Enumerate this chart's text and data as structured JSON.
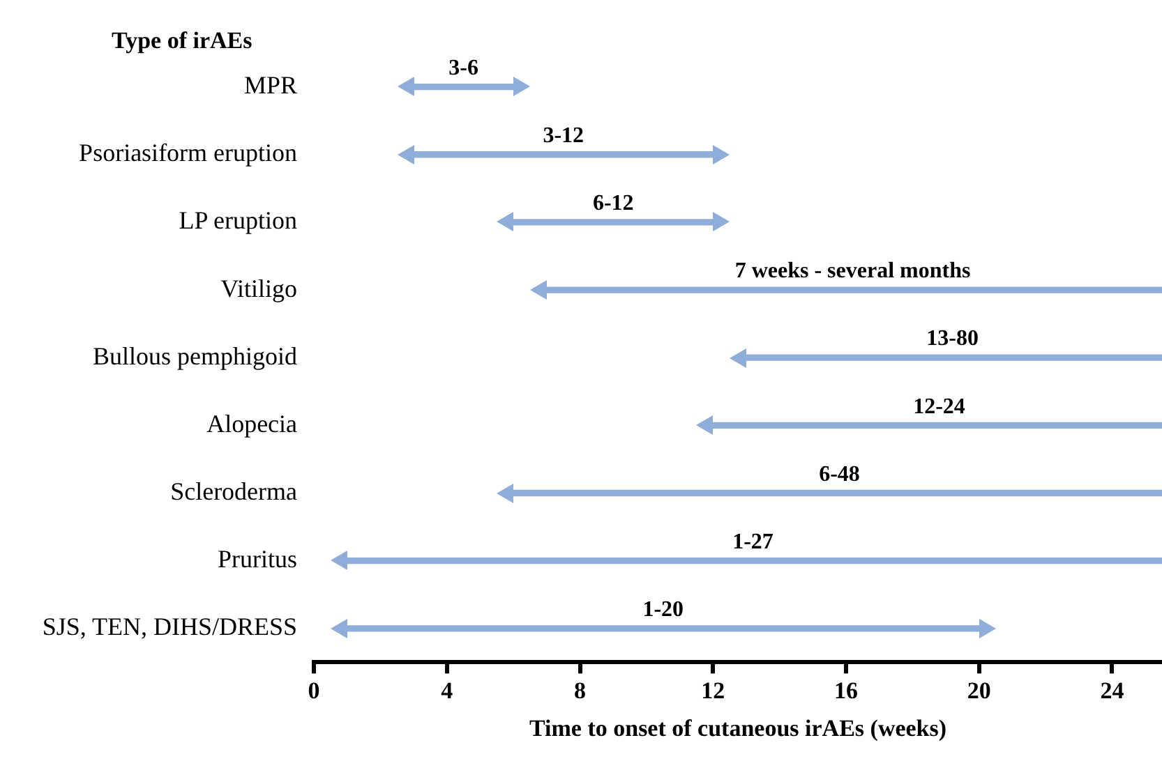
{
  "chart_data": {
    "type": "bar",
    "orientation": "horizontal",
    "ylabel": "Type of irAEs",
    "xlabel": "Time to onset of cutaneous irAEs (weeks)",
    "categories": [
      "MPR",
      "Psoriasiform eruption",
      "LP eruption",
      "Vitiligo",
      "Bullous pemphigoid",
      "Alopecia",
      "Scleroderma",
      "Pruritus",
      "SJS, TEN, DIHS/DRESS"
    ],
    "base": [
      3,
      3,
      6,
      7,
      13,
      12,
      6,
      1,
      1
    ],
    "values": [
      3,
      9,
      6,
      18.5,
      12.5,
      13.5,
      19.5,
      24.5,
      19
    ],
    "annotations": [
      {
        "text": "3-6",
        "x": 4.5,
        "y": "MPR"
      },
      {
        "text": "3-12",
        "x": 7.5,
        "y": "Psoriasiform eruption"
      },
      {
        "text": "6-12",
        "x": 9,
        "y": "LP eruption"
      },
      {
        "text": "7 weeks - several months",
        "x": 16.2,
        "y": "Vitiligo"
      },
      {
        "text": "13-80",
        "x": 19.2,
        "y": "Bullous pemphigoid"
      },
      {
        "text": "12-24",
        "x": 18.8,
        "y": "Alopecia"
      },
      {
        "text": "6-48",
        "x": 15.8,
        "y": "Scleroderma"
      },
      {
        "text": "1-27",
        "x": 13.2,
        "y": "Pruritus"
      },
      {
        "text": "1-20",
        "x": 10.5,
        "y": "SJS, TEN, DIHS/DRESS"
      }
    ],
    "color": "#8eadd8",
    "xlim": [
      0,
      25.5
    ],
    "xticks": [
      0,
      4,
      8,
      12,
      16,
      20,
      24
    ],
    "grid": false,
    "legend": false
  }
}
